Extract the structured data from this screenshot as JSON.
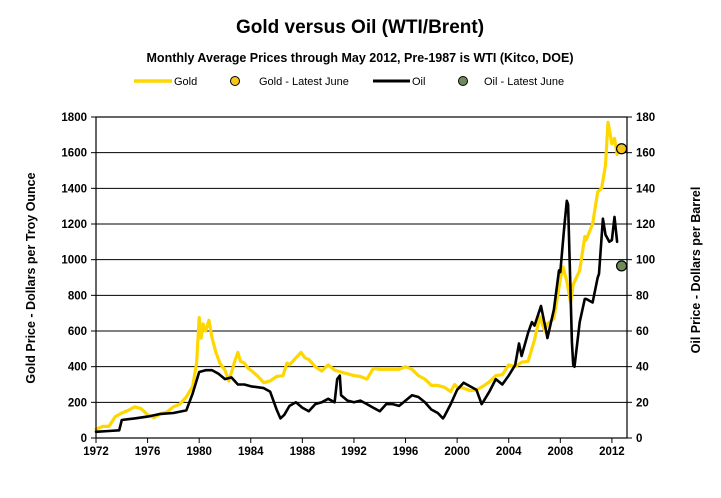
{
  "chart_data": {
    "type": "line",
    "title": "Gold versus Oil (WTI/Brent)",
    "subtitle": "Monthly Average Prices through May 2012, Pre-1987 is WTI (Kitco, DOE)",
    "ylabel_left": "Gold Price - Dollars per Troy Ounce",
    "ylabel_right": "Oil Price - Dollars per Barrel",
    "xlim": [
      1972,
      2013.17
    ],
    "ylim_left": [
      0,
      1800
    ],
    "ylim_right": [
      0,
      180
    ],
    "x_ticks": [
      1972,
      1976,
      1980,
      1984,
      1988,
      1992,
      1996,
      2000,
      2004,
      2008,
      2012
    ],
    "y_ticks_left": [
      0,
      200,
      400,
      600,
      800,
      1000,
      1200,
      1400,
      1600,
      1800
    ],
    "y_ticks_right": [
      0,
      20,
      40,
      60,
      80,
      100,
      120,
      140,
      160,
      180
    ],
    "grid": "horizontal",
    "legend_position": "top",
    "legend": [
      "Gold",
      "Gold - Latest June",
      "Oil",
      "Oil - Latest June"
    ],
    "colors": {
      "gold": "#FFD700",
      "gold_marker": "#F5C518",
      "oil": "#000000",
      "oil_marker": "#6E8B5A"
    },
    "series": [
      {
        "name": "Gold",
        "axis": "left",
        "points": [
          [
            1972.0,
            48
          ],
          [
            1972.5,
            65
          ],
          [
            1973.0,
            65
          ],
          [
            1973.5,
            120
          ],
          [
            1974.0,
            140
          ],
          [
            1974.5,
            155
          ],
          [
            1975.0,
            175
          ],
          [
            1975.5,
            165
          ],
          [
            1976.0,
            130
          ],
          [
            1976.5,
            115
          ],
          [
            1977.0,
            135
          ],
          [
            1977.5,
            145
          ],
          [
            1978.0,
            175
          ],
          [
            1978.5,
            190
          ],
          [
            1979.0,
            230
          ],
          [
            1979.5,
            290
          ],
          [
            1979.8,
            420
          ],
          [
            1980.0,
            675
          ],
          [
            1980.15,
            560
          ],
          [
            1980.3,
            640
          ],
          [
            1980.5,
            600
          ],
          [
            1980.75,
            660
          ],
          [
            1981.0,
            560
          ],
          [
            1981.3,
            480
          ],
          [
            1981.6,
            420
          ],
          [
            1982.0,
            380
          ],
          [
            1982.3,
            320
          ],
          [
            1982.6,
            390
          ],
          [
            1982.8,
            440
          ],
          [
            1983.0,
            480
          ],
          [
            1983.2,
            430
          ],
          [
            1983.5,
            420
          ],
          [
            1983.8,
            390
          ],
          [
            1984.0,
            380
          ],
          [
            1984.5,
            350
          ],
          [
            1985.0,
            310
          ],
          [
            1985.5,
            320
          ],
          [
            1986.0,
            345
          ],
          [
            1986.5,
            350
          ],
          [
            1986.8,
            420
          ],
          [
            1987.0,
            410
          ],
          [
            1987.5,
            450
          ],
          [
            1987.9,
            480
          ],
          [
            1988.2,
            450
          ],
          [
            1988.5,
            440
          ],
          [
            1989.0,
            400
          ],
          [
            1989.5,
            375
          ],
          [
            1990.0,
            410
          ],
          [
            1990.5,
            380
          ],
          [
            1991.0,
            370
          ],
          [
            1991.5,
            360
          ],
          [
            1992.0,
            350
          ],
          [
            1992.5,
            345
          ],
          [
            1993.0,
            330
          ],
          [
            1993.5,
            390
          ],
          [
            1994.0,
            385
          ],
          [
            1994.5,
            385
          ],
          [
            1995.0,
            385
          ],
          [
            1995.5,
            385
          ],
          [
            1996.0,
            400
          ],
          [
            1996.5,
            385
          ],
          [
            1997.0,
            350
          ],
          [
            1997.5,
            330
          ],
          [
            1998.0,
            295
          ],
          [
            1998.5,
            295
          ],
          [
            1999.0,
            285
          ],
          [
            1999.5,
            260
          ],
          [
            1999.8,
            300
          ],
          [
            2000.0,
            285
          ],
          [
            2000.5,
            280
          ],
          [
            2001.0,
            265
          ],
          [
            2001.5,
            270
          ],
          [
            2002.0,
            290
          ],
          [
            2002.5,
            315
          ],
          [
            2003.0,
            350
          ],
          [
            2003.5,
            355
          ],
          [
            2004.0,
            410
          ],
          [
            2004.5,
            400
          ],
          [
            2005.0,
            425
          ],
          [
            2005.5,
            430
          ],
          [
            2006.0,
            550
          ],
          [
            2006.4,
            680
          ],
          [
            2006.8,
            600
          ],
          [
            2007.0,
            640
          ],
          [
            2007.5,
            670
          ],
          [
            2008.0,
            890
          ],
          [
            2008.2,
            960
          ],
          [
            2008.5,
            880
          ],
          [
            2008.8,
            760
          ],
          [
            2009.0,
            860
          ],
          [
            2009.5,
            940
          ],
          [
            2009.9,
            1130
          ],
          [
            2010.0,
            1110
          ],
          [
            2010.5,
            1200
          ],
          [
            2010.9,
            1380
          ],
          [
            2011.2,
            1400
          ],
          [
            2011.5,
            1530
          ],
          [
            2011.7,
            1770
          ],
          [
            2011.8,
            1730
          ],
          [
            2012.0,
            1650
          ],
          [
            2012.2,
            1680
          ],
          [
            2012.4,
            1590
          ]
        ]
      },
      {
        "name": "Oil",
        "axis": "right",
        "points": [
          [
            1972.0,
            3.5
          ],
          [
            1973.0,
            3.9
          ],
          [
            1973.8,
            4.3
          ],
          [
            1974.0,
            10.1
          ],
          [
            1975.0,
            11.0
          ],
          [
            1976.0,
            12.0
          ],
          [
            1977.0,
            13.5
          ],
          [
            1978.0,
            14.0
          ],
          [
            1979.0,
            15.5
          ],
          [
            1979.5,
            25
          ],
          [
            1980.0,
            37
          ],
          [
            1980.5,
            38
          ],
          [
            1981.0,
            38
          ],
          [
            1981.5,
            36
          ],
          [
            1982.0,
            33
          ],
          [
            1982.5,
            34
          ],
          [
            1983.0,
            30
          ],
          [
            1983.5,
            30
          ],
          [
            1984.0,
            29
          ],
          [
            1985.0,
            28
          ],
          [
            1985.5,
            26
          ],
          [
            1986.0,
            16
          ],
          [
            1986.3,
            11
          ],
          [
            1986.6,
            13
          ],
          [
            1987.0,
            18
          ],
          [
            1987.5,
            20
          ],
          [
            1988.0,
            17
          ],
          [
            1988.5,
            15
          ],
          [
            1989.0,
            19
          ],
          [
            1989.5,
            20
          ],
          [
            1990.0,
            22
          ],
          [
            1990.5,
            20
          ],
          [
            1990.7,
            33
          ],
          [
            1990.9,
            35
          ],
          [
            1991.0,
            24
          ],
          [
            1991.5,
            21
          ],
          [
            1992.0,
            20
          ],
          [
            1992.5,
            21
          ],
          [
            1993.0,
            19
          ],
          [
            1993.5,
            17
          ],
          [
            1994.0,
            15
          ],
          [
            1994.5,
            19
          ],
          [
            1995.0,
            19
          ],
          [
            1995.5,
            18
          ],
          [
            1996.0,
            21
          ],
          [
            1996.5,
            24
          ],
          [
            1997.0,
            23
          ],
          [
            1997.5,
            20
          ],
          [
            1998.0,
            16
          ],
          [
            1998.5,
            14
          ],
          [
            1998.9,
            11
          ],
          [
            1999.0,
            12
          ],
          [
            1999.5,
            19
          ],
          [
            2000.0,
            27
          ],
          [
            2000.5,
            31
          ],
          [
            2001.0,
            29
          ],
          [
            2001.5,
            27
          ],
          [
            2001.9,
            19
          ],
          [
            2002.0,
            20
          ],
          [
            2002.5,
            26
          ],
          [
            2003.0,
            33
          ],
          [
            2003.5,
            30
          ],
          [
            2004.0,
            35
          ],
          [
            2004.5,
            41
          ],
          [
            2004.8,
            53
          ],
          [
            2005.0,
            46
          ],
          [
            2005.5,
            59
          ],
          [
            2005.8,
            65
          ],
          [
            2006.0,
            63
          ],
          [
            2006.5,
            74
          ],
          [
            2006.9,
            60
          ],
          [
            2007.0,
            56
          ],
          [
            2007.5,
            72
          ],
          [
            2007.9,
            94
          ],
          [
            2008.0,
            93
          ],
          [
            2008.3,
            118
          ],
          [
            2008.5,
            133
          ],
          [
            2008.6,
            131
          ],
          [
            2008.9,
            54
          ],
          [
            2009.0,
            41
          ],
          [
            2009.1,
            40
          ],
          [
            2009.5,
            65
          ],
          [
            2009.9,
            78
          ],
          [
            2010.0,
            78
          ],
          [
            2010.5,
            76
          ],
          [
            2010.9,
            90
          ],
          [
            2011.0,
            92
          ],
          [
            2011.3,
            123
          ],
          [
            2011.5,
            114
          ],
          [
            2011.8,
            110
          ],
          [
            2012.0,
            111
          ],
          [
            2012.2,
            124
          ],
          [
            2012.4,
            110
          ]
        ]
      }
    ],
    "markers": [
      {
        "name": "Gold - Latest June",
        "axis": "left",
        "x": 2012.75,
        "y": 1622
      },
      {
        "name": "Oil - Latest June",
        "axis": "right",
        "x": 2012.75,
        "y": 96.5
      }
    ]
  }
}
